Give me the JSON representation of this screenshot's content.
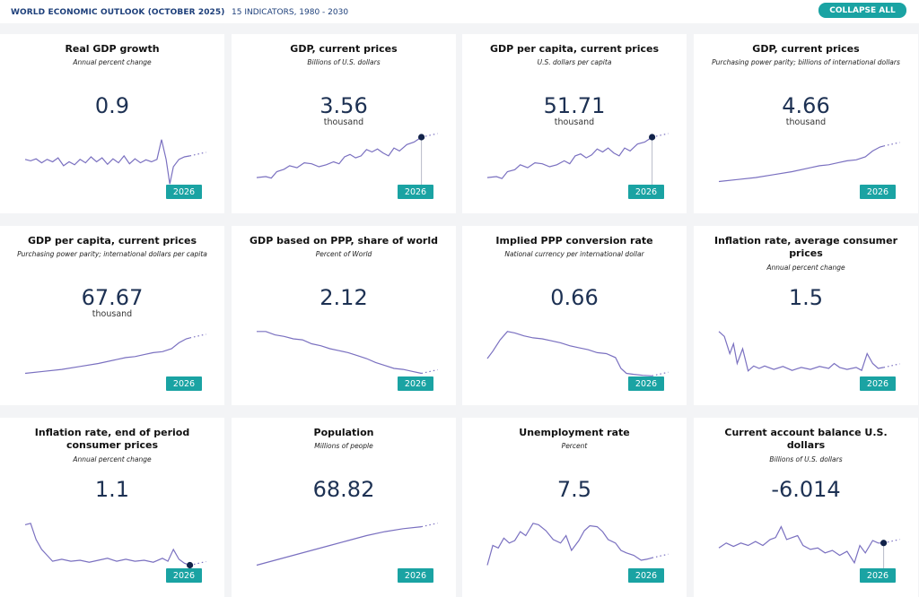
{
  "header": {
    "title": "WORLD ECONOMIC OUTLOOK (OCTOBER 2025)",
    "subtitle": "15 INDICATORS, 1980 - 2030",
    "collapse_label": "COLLAPSE ALL"
  },
  "colors": {
    "accent": "#1aa3a3",
    "line": "#7a70c0",
    "value": "#1d3153",
    "marker": "#12234a"
  },
  "cards": [
    {
      "title": "Real GDP growth",
      "unit": "Annual percent change",
      "value": "0.9",
      "suffix": "",
      "year": "2026",
      "marker": false,
      "series": [
        [
          0.0,
          0.55
        ],
        [
          0.03,
          0.52
        ],
        [
          0.06,
          0.56
        ],
        [
          0.09,
          0.48
        ],
        [
          0.12,
          0.55
        ],
        [
          0.15,
          0.5
        ],
        [
          0.18,
          0.58
        ],
        [
          0.21,
          0.42
        ],
        [
          0.24,
          0.5
        ],
        [
          0.27,
          0.44
        ],
        [
          0.3,
          0.55
        ],
        [
          0.33,
          0.48
        ],
        [
          0.36,
          0.6
        ],
        [
          0.39,
          0.5
        ],
        [
          0.42,
          0.58
        ],
        [
          0.45,
          0.45
        ],
        [
          0.48,
          0.56
        ],
        [
          0.51,
          0.48
        ],
        [
          0.54,
          0.62
        ],
        [
          0.57,
          0.46
        ],
        [
          0.6,
          0.56
        ],
        [
          0.63,
          0.48
        ],
        [
          0.66,
          0.54
        ],
        [
          0.69,
          0.5
        ],
        [
          0.72,
          0.55
        ],
        [
          0.745,
          0.95
        ],
        [
          0.77,
          0.55
        ],
        [
          0.79,
          0.05
        ],
        [
          0.81,
          0.4
        ],
        [
          0.84,
          0.55
        ],
        [
          0.87,
          0.6
        ],
        [
          0.9,
          0.62
        ]
      ]
    },
    {
      "title": "GDP, current prices",
      "unit": "Billions of U.S. dollars",
      "value": "3.56",
      "suffix": "thousand",
      "year": "2026",
      "marker": true,
      "series": [
        [
          0.0,
          0.18
        ],
        [
          0.05,
          0.2
        ],
        [
          0.08,
          0.17
        ],
        [
          0.11,
          0.3
        ],
        [
          0.15,
          0.35
        ],
        [
          0.18,
          0.42
        ],
        [
          0.22,
          0.38
        ],
        [
          0.26,
          0.48
        ],
        [
          0.3,
          0.46
        ],
        [
          0.34,
          0.4
        ],
        [
          0.38,
          0.44
        ],
        [
          0.42,
          0.5
        ],
        [
          0.45,
          0.46
        ],
        [
          0.48,
          0.6
        ],
        [
          0.51,
          0.65
        ],
        [
          0.54,
          0.58
        ],
        [
          0.57,
          0.62
        ],
        [
          0.6,
          0.75
        ],
        [
          0.63,
          0.7
        ],
        [
          0.66,
          0.76
        ],
        [
          0.69,
          0.68
        ],
        [
          0.72,
          0.62
        ],
        [
          0.75,
          0.78
        ],
        [
          0.78,
          0.72
        ],
        [
          0.82,
          0.85
        ],
        [
          0.86,
          0.9
        ],
        [
          0.9,
          1.0
        ]
      ]
    },
    {
      "title": "GDP per capita, current prices",
      "unit": "U.S. dollars per capita",
      "value": "51.71",
      "suffix": "thousand",
      "year": "2026",
      "marker": true,
      "series": [
        [
          0.0,
          0.18
        ],
        [
          0.05,
          0.2
        ],
        [
          0.08,
          0.16
        ],
        [
          0.11,
          0.3
        ],
        [
          0.15,
          0.34
        ],
        [
          0.18,
          0.44
        ],
        [
          0.22,
          0.38
        ],
        [
          0.26,
          0.48
        ],
        [
          0.3,
          0.46
        ],
        [
          0.34,
          0.4
        ],
        [
          0.38,
          0.44
        ],
        [
          0.42,
          0.52
        ],
        [
          0.45,
          0.46
        ],
        [
          0.48,
          0.62
        ],
        [
          0.51,
          0.66
        ],
        [
          0.54,
          0.58
        ],
        [
          0.57,
          0.64
        ],
        [
          0.6,
          0.76
        ],
        [
          0.63,
          0.7
        ],
        [
          0.66,
          0.78
        ],
        [
          0.69,
          0.68
        ],
        [
          0.72,
          0.62
        ],
        [
          0.75,
          0.78
        ],
        [
          0.78,
          0.72
        ],
        [
          0.82,
          0.86
        ],
        [
          0.86,
          0.9
        ],
        [
          0.9,
          1.0
        ]
      ]
    },
    {
      "title": "GDP, current prices",
      "unit": "Purchasing power parity; billions of international dollars",
      "value": "4.66",
      "suffix": "thousand",
      "year": "2026",
      "marker": false,
      "series": [
        [
          0.0,
          0.1
        ],
        [
          0.1,
          0.14
        ],
        [
          0.2,
          0.18
        ],
        [
          0.3,
          0.24
        ],
        [
          0.4,
          0.3
        ],
        [
          0.5,
          0.38
        ],
        [
          0.55,
          0.42
        ],
        [
          0.6,
          0.44
        ],
        [
          0.65,
          0.48
        ],
        [
          0.7,
          0.52
        ],
        [
          0.75,
          0.54
        ],
        [
          0.8,
          0.6
        ],
        [
          0.84,
          0.72
        ],
        [
          0.88,
          0.8
        ],
        [
          0.9,
          0.82
        ]
      ]
    },
    {
      "title": "GDP per capita, current prices",
      "unit": "Purchasing power parity; international dollars per capita",
      "value": "67.67",
      "suffix": "thousand",
      "year": "2026",
      "marker": false,
      "series": [
        [
          0.0,
          0.1
        ],
        [
          0.1,
          0.14
        ],
        [
          0.2,
          0.18
        ],
        [
          0.3,
          0.24
        ],
        [
          0.4,
          0.3
        ],
        [
          0.5,
          0.38
        ],
        [
          0.55,
          0.42
        ],
        [
          0.6,
          0.44
        ],
        [
          0.65,
          0.48
        ],
        [
          0.7,
          0.52
        ],
        [
          0.75,
          0.54
        ],
        [
          0.8,
          0.6
        ],
        [
          0.84,
          0.72
        ],
        [
          0.88,
          0.8
        ],
        [
          0.9,
          0.82
        ]
      ]
    },
    {
      "title": "GDP based on PPP, share of world",
      "unit": "Percent of World",
      "value": "2.12",
      "suffix": "",
      "year": "2026",
      "marker": false,
      "series": [
        [
          0.0,
          0.95
        ],
        [
          0.05,
          0.95
        ],
        [
          0.1,
          0.88
        ],
        [
          0.15,
          0.85
        ],
        [
          0.2,
          0.8
        ],
        [
          0.25,
          0.78
        ],
        [
          0.3,
          0.7
        ],
        [
          0.35,
          0.66
        ],
        [
          0.4,
          0.6
        ],
        [
          0.45,
          0.56
        ],
        [
          0.5,
          0.52
        ],
        [
          0.55,
          0.46
        ],
        [
          0.6,
          0.4
        ],
        [
          0.65,
          0.32
        ],
        [
          0.7,
          0.26
        ],
        [
          0.75,
          0.2
        ],
        [
          0.8,
          0.18
        ],
        [
          0.85,
          0.14
        ],
        [
          0.9,
          0.1
        ]
      ]
    },
    {
      "title": "Implied PPP conversion rate",
      "unit": "National currency per international dollar",
      "value": "0.66",
      "suffix": "",
      "year": "2026",
      "marker": false,
      "series": [
        [
          0.0,
          0.4
        ],
        [
          0.03,
          0.55
        ],
        [
          0.07,
          0.78
        ],
        [
          0.11,
          0.95
        ],
        [
          0.15,
          0.92
        ],
        [
          0.2,
          0.86
        ],
        [
          0.25,
          0.82
        ],
        [
          0.3,
          0.8
        ],
        [
          0.35,
          0.76
        ],
        [
          0.4,
          0.72
        ],
        [
          0.45,
          0.66
        ],
        [
          0.5,
          0.62
        ],
        [
          0.55,
          0.58
        ],
        [
          0.6,
          0.52
        ],
        [
          0.65,
          0.5
        ],
        [
          0.7,
          0.42
        ],
        [
          0.73,
          0.2
        ],
        [
          0.76,
          0.1
        ],
        [
          0.8,
          0.08
        ],
        [
          0.85,
          0.06
        ],
        [
          0.9,
          0.05
        ]
      ]
    },
    {
      "title": "Inflation rate, average consumer prices",
      "unit": "Annual percent change",
      "value": "1.5",
      "suffix": "",
      "year": "2026",
      "marker": false,
      "series": [
        [
          0.0,
          0.95
        ],
        [
          0.03,
          0.85
        ],
        [
          0.06,
          0.5
        ],
        [
          0.08,
          0.7
        ],
        [
          0.1,
          0.3
        ],
        [
          0.13,
          0.6
        ],
        [
          0.16,
          0.15
        ],
        [
          0.19,
          0.25
        ],
        [
          0.22,
          0.2
        ],
        [
          0.25,
          0.25
        ],
        [
          0.3,
          0.18
        ],
        [
          0.35,
          0.24
        ],
        [
          0.4,
          0.16
        ],
        [
          0.45,
          0.22
        ],
        [
          0.5,
          0.18
        ],
        [
          0.55,
          0.24
        ],
        [
          0.6,
          0.2
        ],
        [
          0.63,
          0.3
        ],
        [
          0.66,
          0.22
        ],
        [
          0.7,
          0.18
        ],
        [
          0.75,
          0.22
        ],
        [
          0.78,
          0.16
        ],
        [
          0.81,
          0.5
        ],
        [
          0.84,
          0.3
        ],
        [
          0.87,
          0.2
        ],
        [
          0.9,
          0.22
        ]
      ]
    },
    {
      "title": "Inflation rate, end of period consumer prices",
      "unit": "Annual percent change",
      "value": "1.1",
      "suffix": "",
      "year": "2026",
      "marker": true,
      "series": [
        [
          0.0,
          0.92
        ],
        [
          0.03,
          0.95
        ],
        [
          0.06,
          0.62
        ],
        [
          0.09,
          0.42
        ],
        [
          0.12,
          0.3
        ],
        [
          0.15,
          0.18
        ],
        [
          0.2,
          0.22
        ],
        [
          0.25,
          0.18
        ],
        [
          0.3,
          0.2
        ],
        [
          0.35,
          0.16
        ],
        [
          0.4,
          0.2
        ],
        [
          0.45,
          0.24
        ],
        [
          0.5,
          0.18
        ],
        [
          0.55,
          0.22
        ],
        [
          0.6,
          0.18
        ],
        [
          0.65,
          0.2
        ],
        [
          0.7,
          0.16
        ],
        [
          0.75,
          0.24
        ],
        [
          0.78,
          0.18
        ],
        [
          0.81,
          0.42
        ],
        [
          0.84,
          0.22
        ],
        [
          0.87,
          0.14
        ],
        [
          0.9,
          0.1
        ]
      ]
    },
    {
      "title": "Population",
      "unit": "Millions of people",
      "value": "68.82",
      "suffix": "",
      "year": "2026",
      "marker": false,
      "series": [
        [
          0.0,
          0.1
        ],
        [
          0.1,
          0.2
        ],
        [
          0.2,
          0.3
        ],
        [
          0.3,
          0.4
        ],
        [
          0.4,
          0.5
        ],
        [
          0.5,
          0.6
        ],
        [
          0.6,
          0.7
        ],
        [
          0.7,
          0.78
        ],
        [
          0.8,
          0.84
        ],
        [
          0.9,
          0.88
        ]
      ]
    },
    {
      "title": "Unemployment rate",
      "unit": "Percent",
      "value": "7.5",
      "suffix": "",
      "year": "2026",
      "marker": false,
      "series": [
        [
          0.0,
          0.1
        ],
        [
          0.03,
          0.5
        ],
        [
          0.06,
          0.45
        ],
        [
          0.09,
          0.65
        ],
        [
          0.12,
          0.55
        ],
        [
          0.15,
          0.6
        ],
        [
          0.18,
          0.78
        ],
        [
          0.21,
          0.7
        ],
        [
          0.25,
          0.95
        ],
        [
          0.28,
          0.92
        ],
        [
          0.32,
          0.8
        ],
        [
          0.36,
          0.62
        ],
        [
          0.4,
          0.55
        ],
        [
          0.43,
          0.7
        ],
        [
          0.46,
          0.4
        ],
        [
          0.5,
          0.6
        ],
        [
          0.53,
          0.8
        ],
        [
          0.56,
          0.9
        ],
        [
          0.6,
          0.88
        ],
        [
          0.63,
          0.78
        ],
        [
          0.66,
          0.62
        ],
        [
          0.7,
          0.55
        ],
        [
          0.73,
          0.4
        ],
        [
          0.76,
          0.35
        ],
        [
          0.8,
          0.3
        ],
        [
          0.84,
          0.2
        ],
        [
          0.87,
          0.22
        ],
        [
          0.9,
          0.25
        ]
      ]
    },
    {
      "title": "Current account balance U.S. dollars",
      "unit": "Billions of U.S. dollars",
      "value": "-6.014",
      "suffix": "",
      "year": "2026",
      "marker": true,
      "series": [
        [
          0.0,
          0.45
        ],
        [
          0.04,
          0.55
        ],
        [
          0.08,
          0.48
        ],
        [
          0.12,
          0.55
        ],
        [
          0.16,
          0.5
        ],
        [
          0.2,
          0.58
        ],
        [
          0.24,
          0.5
        ],
        [
          0.28,
          0.62
        ],
        [
          0.31,
          0.66
        ],
        [
          0.34,
          0.88
        ],
        [
          0.37,
          0.62
        ],
        [
          0.4,
          0.66
        ],
        [
          0.43,
          0.7
        ],
        [
          0.46,
          0.5
        ],
        [
          0.5,
          0.42
        ],
        [
          0.54,
          0.45
        ],
        [
          0.58,
          0.35
        ],
        [
          0.62,
          0.4
        ],
        [
          0.66,
          0.3
        ],
        [
          0.7,
          0.38
        ],
        [
          0.74,
          0.15
        ],
        [
          0.77,
          0.5
        ],
        [
          0.8,
          0.35
        ],
        [
          0.84,
          0.6
        ],
        [
          0.87,
          0.55
        ],
        [
          0.9,
          0.55
        ]
      ]
    }
  ]
}
